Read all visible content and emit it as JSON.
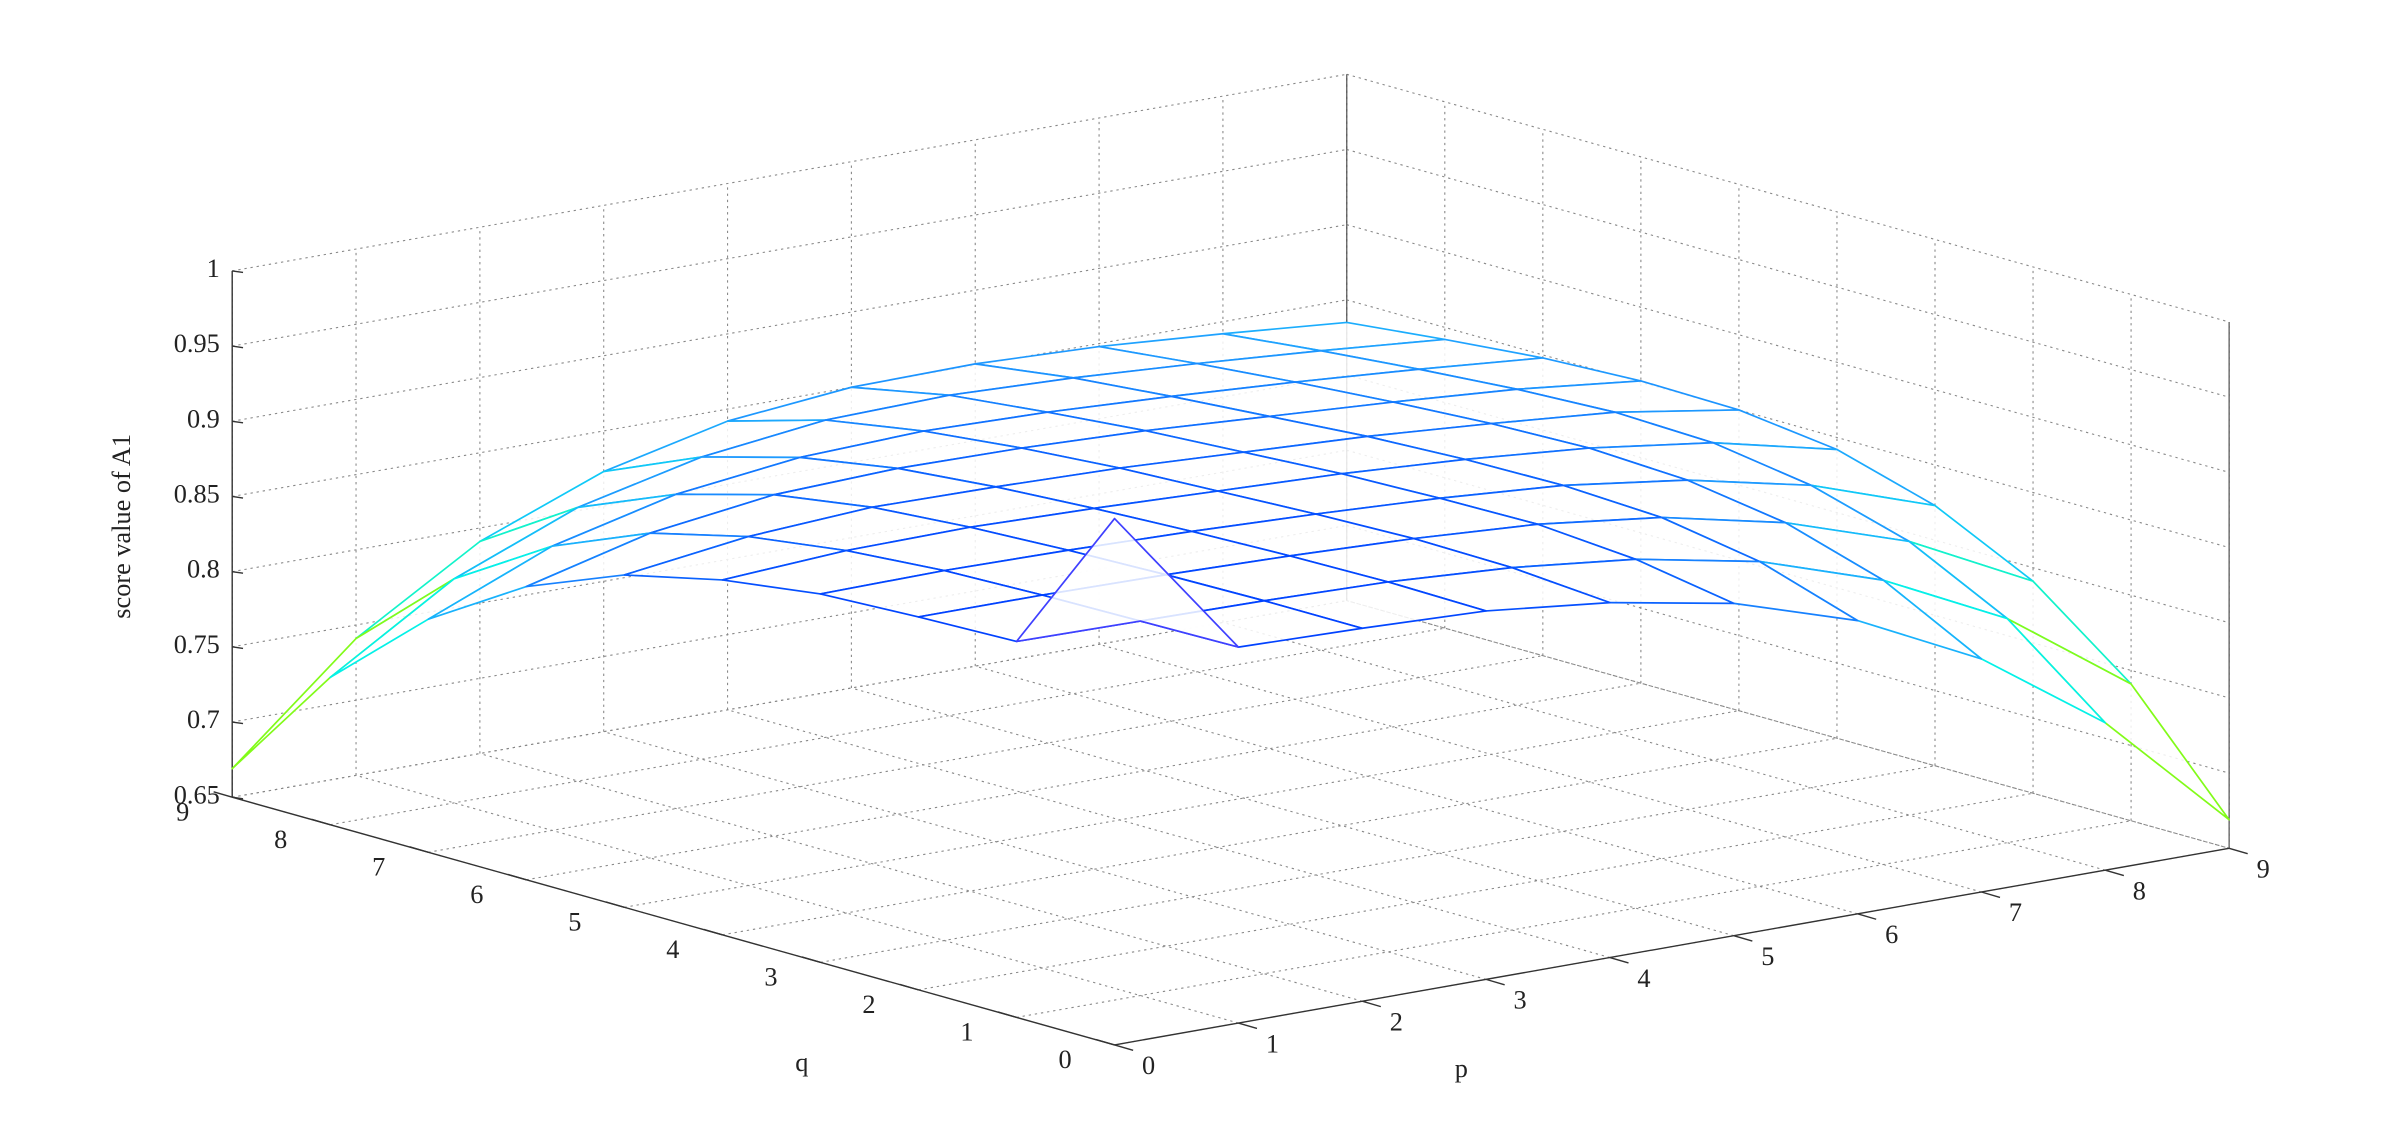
{
  "chart_data": {
    "type": "mesh",
    "xlabel": "p",
    "ylabel": "q",
    "zlabel": "score value of A1",
    "x": [
      0,
      1,
      2,
      3,
      4,
      5,
      6,
      7,
      8,
      9
    ],
    "y": [
      0,
      1,
      2,
      3,
      4,
      5,
      6,
      7,
      8,
      9
    ],
    "z": [
      [
        1.0,
        0.9,
        0.898,
        0.895,
        0.886,
        0.871,
        0.845,
        0.805,
        0.748,
        0.669
      ],
      [
        0.9,
        0.899,
        0.898,
        0.896,
        0.891,
        0.882,
        0.866,
        0.839,
        0.799,
        0.741
      ],
      [
        0.898,
        0.898,
        0.897,
        0.895,
        0.892,
        0.887,
        0.877,
        0.859,
        0.832,
        0.791
      ],
      [
        0.895,
        0.896,
        0.895,
        0.893,
        0.89,
        0.886,
        0.88,
        0.869,
        0.851,
        0.823
      ],
      [
        0.886,
        0.891,
        0.892,
        0.89,
        0.887,
        0.884,
        0.879,
        0.872,
        0.861,
        0.842
      ],
      [
        0.871,
        0.882,
        0.887,
        0.886,
        0.884,
        0.88,
        0.876,
        0.87,
        0.863,
        0.85
      ],
      [
        0.845,
        0.866,
        0.877,
        0.88,
        0.879,
        0.876,
        0.871,
        0.866,
        0.86,
        0.851
      ],
      [
        0.805,
        0.839,
        0.859,
        0.869,
        0.872,
        0.87,
        0.866,
        0.861,
        0.855,
        0.848
      ],
      [
        0.748,
        0.799,
        0.832,
        0.851,
        0.861,
        0.863,
        0.86,
        0.855,
        0.849,
        0.842
      ],
      [
        0.669,
        0.741,
        0.791,
        0.823,
        0.842,
        0.85,
        0.851,
        0.848,
        0.842,
        0.835
      ]
    ],
    "xlim": [
      0,
      9
    ],
    "ylim": [
      0,
      9
    ],
    "zlim": [
      0.65,
      1
    ],
    "xticks": [
      0,
      1,
      2,
      3,
      4,
      5,
      6,
      7,
      8,
      9
    ],
    "yticks": [
      0,
      1,
      2,
      3,
      4,
      5,
      6,
      7,
      8,
      9
    ],
    "zticks": [
      0.65,
      0.7,
      0.75,
      0.8,
      0.85,
      0.9,
      0.95,
      1
    ],
    "grid": true,
    "colormap": [
      "#ff2a00",
      "#ffee00",
      "#60ff20",
      "#00f0f0",
      "#20a0ff",
      "#0040ff",
      "#8040ff",
      "#ff40c0"
    ]
  }
}
